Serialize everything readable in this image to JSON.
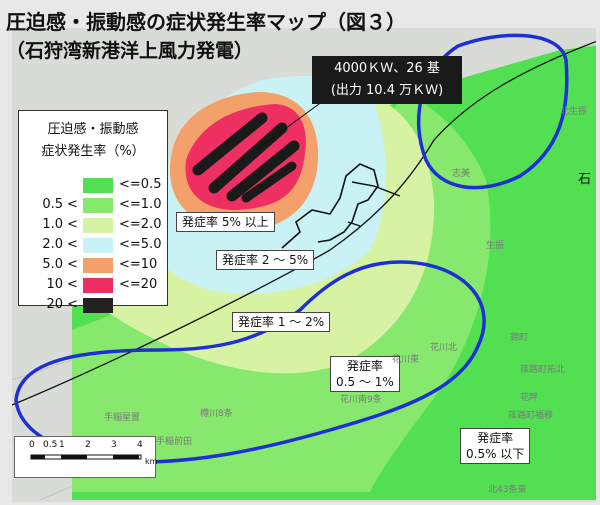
{
  "title": {
    "line1": "圧迫感・振動感の症状発生率マップ（図３）",
    "line2": "（石狩湾新港洋上風力発電）"
  },
  "callout": {
    "line1": "4000ＫＷ、26 基",
    "line2": "(出力 10.4 万ＫＷ)"
  },
  "legend": {
    "title_line1": "圧迫感・振動感",
    "title_line2": "症状発生率（%）",
    "rows": [
      {
        "lower": "",
        "lt": "",
        "upper": "<=0.5",
        "color": "#52e052"
      },
      {
        "lower": "0.5",
        "lt": "<",
        "upper": "<=1.0",
        "color": "#86e86c"
      },
      {
        "lower": "1.0",
        "lt": "<",
        "upper": "<=2.0",
        "color": "#d6f2a2"
      },
      {
        "lower": "2.0",
        "lt": "<",
        "upper": "<=5.0",
        "color": "#c8f2f4"
      },
      {
        "lower": "5.0",
        "lt": "<",
        "upper": "<=10",
        "color": "#f4a06a"
      },
      {
        "lower": "10",
        "lt": "<",
        "upper": "<=20",
        "color": "#ee2f62"
      },
      {
        "lower": "20",
        "lt": "<",
        "upper": "",
        "color": "#222222"
      }
    ]
  },
  "zone_labels": {
    "z5": "発症率 5% 以上",
    "z2_5": "発症率 2 ～ 5%",
    "z1_2": "発症率 1 ～ 2%",
    "z05_1_line1": "発症率",
    "z05_1_line2": "0.5 ～ 1%",
    "z05_line1": "発症率",
    "z05_line2": "0.5% 以下"
  },
  "scale_bar": {
    "ticks": [
      "0",
      "0.5",
      "1",
      "2",
      "3",
      "4"
    ],
    "unit": "km"
  },
  "place_names": [
    "志美",
    "生振",
    "花川北",
    "花川東",
    "花川南9条",
    "樽川8条",
    "手稲星置",
    "手稲前田",
    "錦町",
    "花畔",
    "北生振",
    "北43条東",
    "篠路町拓北",
    "篠路町福移",
    "石"
  ],
  "colors": {
    "zone_05": "#52e052",
    "zone_1": "#86e86c",
    "zone_2": "#d6f2a2",
    "zone_5": "#c8f2f4",
    "zone_10": "#f4a06a",
    "zone_20": "#ee2f62",
    "zone_max": "#222222",
    "annotation_loop": "#1f2fd6"
  }
}
